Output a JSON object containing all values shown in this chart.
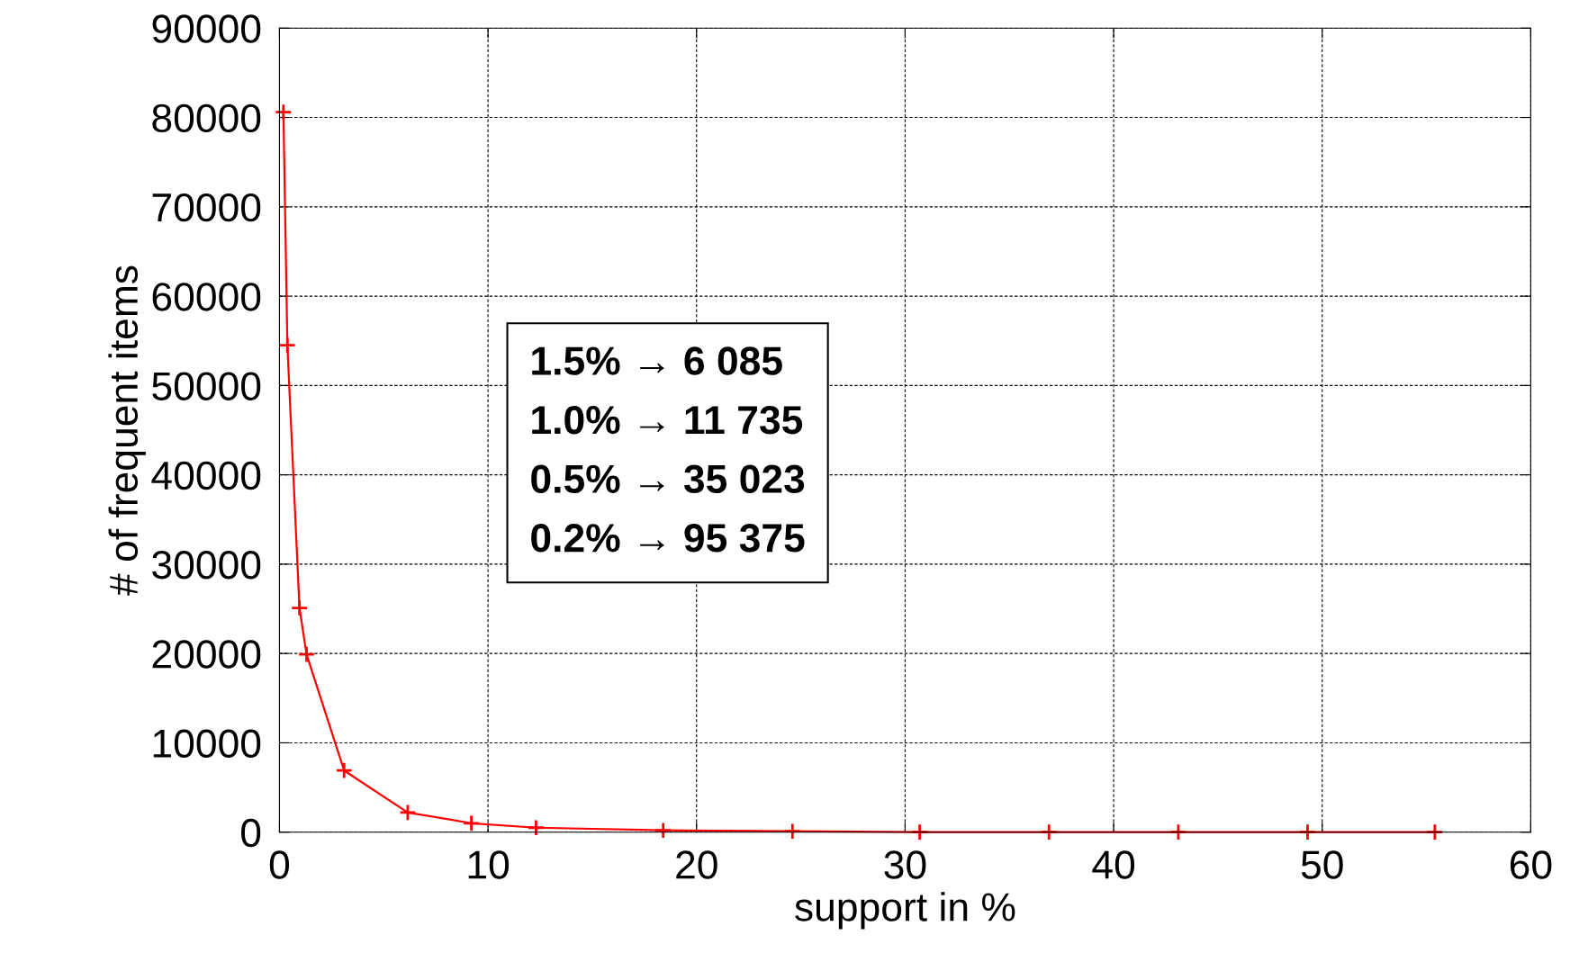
{
  "chart_data": {
    "type": "line",
    "xlabel": "support in %",
    "ylabel": "# of frequent items",
    "x": [
      0.19,
      0.38,
      0.96,
      1.3,
      3.1,
      6.15,
      9.2,
      12.3,
      18.4,
      24.6,
      30.7,
      36.9,
      43.1,
      49.3,
      55.4
    ],
    "series": [
      {
        "color": "#ff0000",
        "values": [
          80600,
          54500,
          25100,
          19900,
          6900,
          2200,
          1000,
          500,
          200,
          100,
          0,
          0,
          0,
          0,
          0
        ]
      }
    ],
    "xlim": [
      0,
      60
    ],
    "xticks": [
      0,
      10,
      20,
      30,
      40,
      50,
      60
    ],
    "ylim": [
      0,
      90000
    ],
    "yticks": [
      0,
      10000,
      20000,
      30000,
      40000,
      50000,
      60000,
      70000,
      80000,
      90000
    ],
    "grid": true,
    "marker": "cross",
    "line_style": "solid",
    "annotations": [
      "1.5% → 6 085",
      "1.0% → 11 735",
      "0.5% → 35 023",
      "0.2% → 95 375"
    ]
  }
}
